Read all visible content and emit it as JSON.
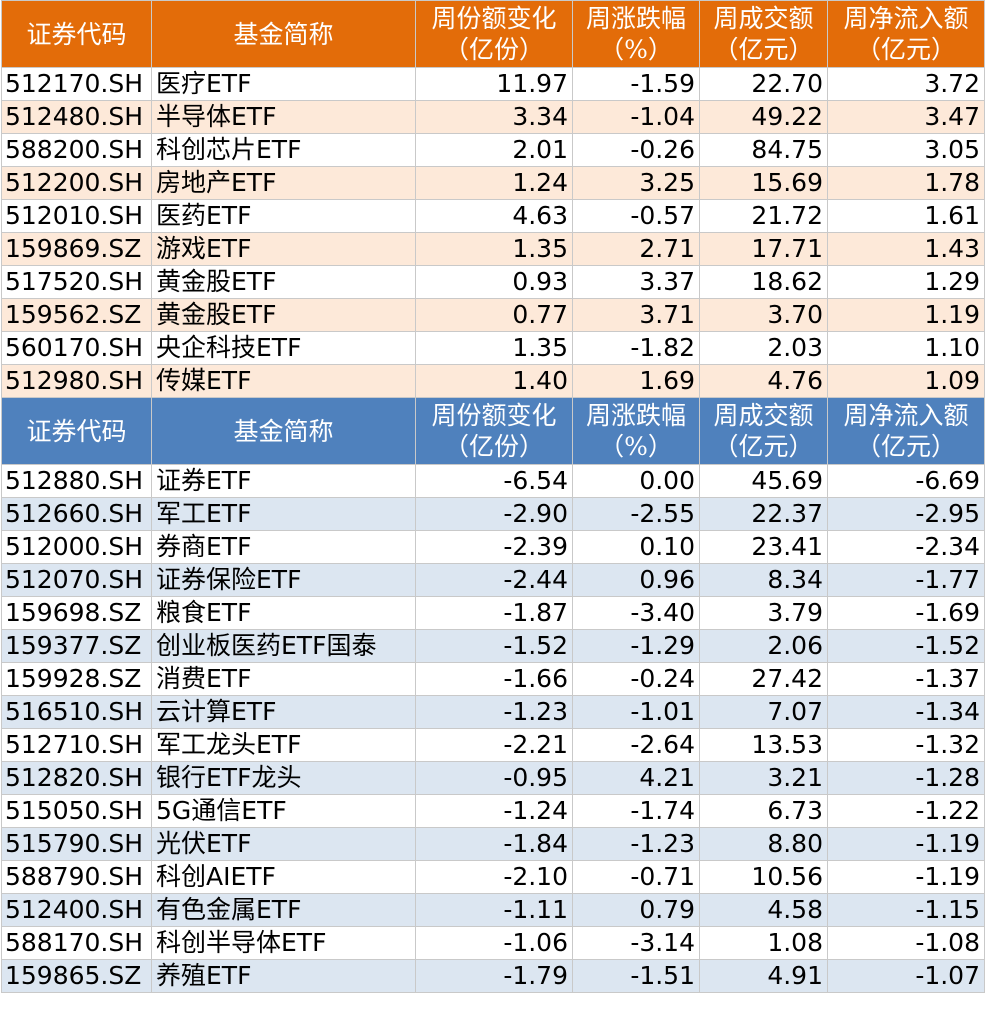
{
  "headers": {
    "code": "证券代码",
    "name": "基金简称",
    "share_change": [
      "周份额变化",
      "（亿份）"
    ],
    "pct_change": [
      "周涨跌幅",
      "（%）"
    ],
    "turnover": [
      "周成交额",
      "（亿元）"
    ],
    "net_inflow": [
      "周净流入额",
      "（亿元）"
    ]
  },
  "inflow_rows": [
    {
      "code": "512170.SH",
      "name": "医疗ETF",
      "share_change": "11.97",
      "pct_change": "-1.59",
      "turnover": "22.70",
      "net_inflow": "3.72"
    },
    {
      "code": "512480.SH",
      "name": "半导体ETF",
      "share_change": "3.34",
      "pct_change": "-1.04",
      "turnover": "49.22",
      "net_inflow": "3.47"
    },
    {
      "code": "588200.SH",
      "name": "科创芯片ETF",
      "share_change": "2.01",
      "pct_change": "-0.26",
      "turnover": "84.75",
      "net_inflow": "3.05"
    },
    {
      "code": "512200.SH",
      "name": "房地产ETF",
      "share_change": "1.24",
      "pct_change": "3.25",
      "turnover": "15.69",
      "net_inflow": "1.78"
    },
    {
      "code": "512010.SH",
      "name": "医药ETF",
      "share_change": "4.63",
      "pct_change": "-0.57",
      "turnover": "21.72",
      "net_inflow": "1.61"
    },
    {
      "code": "159869.SZ",
      "name": "游戏ETF",
      "share_change": "1.35",
      "pct_change": "2.71",
      "turnover": "17.71",
      "net_inflow": "1.43"
    },
    {
      "code": "517520.SH",
      "name": "黄金股ETF",
      "share_change": "0.93",
      "pct_change": "3.37",
      "turnover": "18.62",
      "net_inflow": "1.29"
    },
    {
      "code": "159562.SZ",
      "name": "黄金股ETF",
      "share_change": "0.77",
      "pct_change": "3.71",
      "turnover": "3.70",
      "net_inflow": "1.19"
    },
    {
      "code": "560170.SH",
      "name": "央企科技ETF",
      "share_change": "1.35",
      "pct_change": "-1.82",
      "turnover": "2.03",
      "net_inflow": "1.10"
    },
    {
      "code": "512980.SH",
      "name": "传媒ETF",
      "share_change": "1.40",
      "pct_change": "1.69",
      "turnover": "4.76",
      "net_inflow": "1.09"
    }
  ],
  "outflow_rows": [
    {
      "code": "512880.SH",
      "name": "证券ETF",
      "share_change": "-6.54",
      "pct_change": "0.00",
      "turnover": "45.69",
      "net_inflow": "-6.69"
    },
    {
      "code": "512660.SH",
      "name": "军工ETF",
      "share_change": "-2.90",
      "pct_change": "-2.55",
      "turnover": "22.37",
      "net_inflow": "-2.95"
    },
    {
      "code": "512000.SH",
      "name": "券商ETF",
      "share_change": "-2.39",
      "pct_change": "0.10",
      "turnover": "23.41",
      "net_inflow": "-2.34"
    },
    {
      "code": "512070.SH",
      "name": "证券保险ETF",
      "share_change": "-2.44",
      "pct_change": "0.96",
      "turnover": "8.34",
      "net_inflow": "-1.77"
    },
    {
      "code": "159698.SZ",
      "name": "粮食ETF",
      "share_change": "-1.87",
      "pct_change": "-3.40",
      "turnover": "3.79",
      "net_inflow": "-1.69"
    },
    {
      "code": "159377.SZ",
      "name": "创业板医药ETF国泰",
      "share_change": "-1.52",
      "pct_change": "-1.29",
      "turnover": "2.06",
      "net_inflow": "-1.52"
    },
    {
      "code": "159928.SZ",
      "name": "消费ETF",
      "share_change": "-1.66",
      "pct_change": "-0.24",
      "turnover": "27.42",
      "net_inflow": "-1.37"
    },
    {
      "code": "516510.SH",
      "name": "云计算ETF",
      "share_change": "-1.23",
      "pct_change": "-1.01",
      "turnover": "7.07",
      "net_inflow": "-1.34"
    },
    {
      "code": "512710.SH",
      "name": "军工龙头ETF",
      "share_change": "-2.21",
      "pct_change": "-2.64",
      "turnover": "13.53",
      "net_inflow": "-1.32"
    },
    {
      "code": "512820.SH",
      "name": "银行ETF龙头",
      "share_change": "-0.95",
      "pct_change": "4.21",
      "turnover": "3.21",
      "net_inflow": "-1.28"
    },
    {
      "code": "515050.SH",
      "name": "5G通信ETF",
      "share_change": "-1.24",
      "pct_change": "-1.74",
      "turnover": "6.73",
      "net_inflow": "-1.22"
    },
    {
      "code": "515790.SH",
      "name": "光伏ETF",
      "share_change": "-1.84",
      "pct_change": "-1.23",
      "turnover": "8.80",
      "net_inflow": "-1.19"
    },
    {
      "code": "588790.SH",
      "name": "科创AIETF",
      "share_change": "-2.10",
      "pct_change": "-0.71",
      "turnover": "10.56",
      "net_inflow": "-1.19"
    },
    {
      "code": "512400.SH",
      "name": "有色金属ETF",
      "share_change": "-1.11",
      "pct_change": "0.79",
      "turnover": "4.58",
      "net_inflow": "-1.15"
    },
    {
      "code": "588170.SH",
      "name": "科创半导体ETF",
      "share_change": "-1.06",
      "pct_change": "-3.14",
      "turnover": "1.08",
      "net_inflow": "-1.08"
    },
    {
      "code": "159865.SZ",
      "name": "养殖ETF",
      "share_change": "-1.79",
      "pct_change": "-1.51",
      "turnover": "4.91",
      "net_inflow": "-1.07"
    }
  ],
  "colors": {
    "inflow_header": "#e36c09",
    "inflow_band": "#fde9d9",
    "outflow_header": "#4f81bd",
    "outflow_band": "#dce6f1"
  }
}
